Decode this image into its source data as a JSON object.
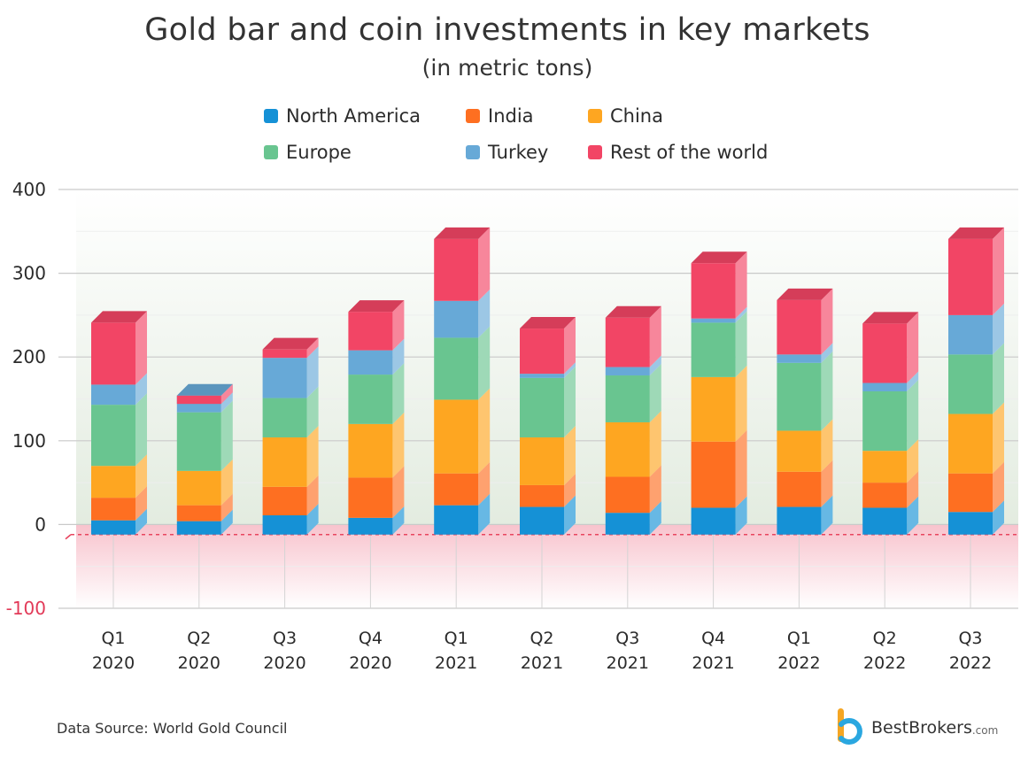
{
  "chart_data": {
    "type": "bar",
    "stacked": true,
    "title": "Gold bar and coin investments in key markets",
    "subtitle": "(in metric tons)",
    "categories": [
      {
        "quarter": "Q1",
        "year": "2020"
      },
      {
        "quarter": "Q2",
        "year": "2020"
      },
      {
        "quarter": "Q3",
        "year": "2020"
      },
      {
        "quarter": "Q4",
        "year": "2020"
      },
      {
        "quarter": "Q1",
        "year": "2021"
      },
      {
        "quarter": "Q2",
        "year": "2021"
      },
      {
        "quarter": "Q3",
        "year": "2021"
      },
      {
        "quarter": "Q4",
        "year": "2021"
      },
      {
        "quarter": "Q1",
        "year": "2022"
      },
      {
        "quarter": "Q2",
        "year": "2022"
      },
      {
        "quarter": "Q3",
        "year": "2022"
      }
    ],
    "series": [
      {
        "name": "North America",
        "color": "#1591d6",
        "values": [
          17,
          16,
          23,
          20,
          35,
          33,
          26,
          32,
          33,
          32,
          27
        ]
      },
      {
        "name": "India",
        "color": "#fe6f21",
        "values": [
          27,
          19,
          34,
          48,
          38,
          26,
          43,
          79,
          42,
          30,
          46
        ]
      },
      {
        "name": "China",
        "color": "#fea621",
        "values": [
          38,
          41,
          59,
          64,
          88,
          57,
          65,
          77,
          49,
          38,
          71
        ]
      },
      {
        "name": "Europe",
        "color": "#69c590",
        "values": [
          73,
          70,
          47,
          59,
          74,
          71,
          56,
          65,
          81,
          71,
          71
        ]
      },
      {
        "name": "Turkey",
        "color": "#67a9d7",
        "values": [
          24,
          20,
          48,
          29,
          44,
          5,
          10,
          5,
          10,
          10,
          47
        ]
      },
      {
        "name": "Rest of the world",
        "color": "#f24565",
        "values": [
          74,
          -10,
          10,
          46,
          74,
          54,
          59,
          66,
          65,
          71,
          91
        ]
      }
    ],
    "ylim": [
      -100,
      400
    ],
    "yticks": [
      -100,
      0,
      100,
      200,
      300,
      400
    ],
    "baseline": -12,
    "legend_position": "top",
    "grid": true
  },
  "source": "Data Source: World Gold Council",
  "brand": {
    "name": "BestBrokers",
    "suffix": ".com"
  }
}
